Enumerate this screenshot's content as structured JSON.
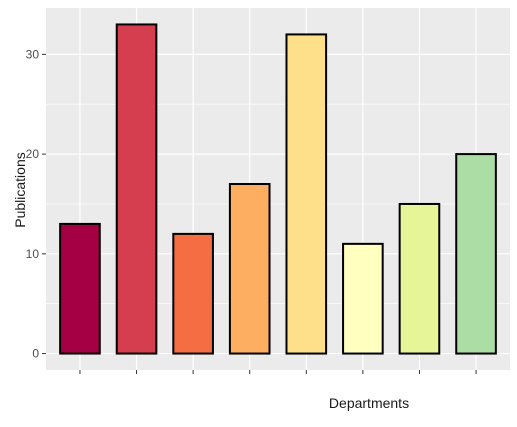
{
  "chart_data": {
    "type": "bar",
    "title": "",
    "xlabel": "Departments",
    "ylabel": "Publications",
    "categories": [
      "",
      "",
      "",
      "",
      "",
      "",
      "",
      ""
    ],
    "values": [
      13,
      33,
      12,
      17,
      32,
      11,
      15,
      20
    ],
    "colors": [
      "#a50043",
      "#d53e4f",
      "#f46d43",
      "#fdae61",
      "#fee08b",
      "#ffffbf",
      "#e6f598",
      "#abdda4"
    ],
    "bar_outline_color": "#000000",
    "panel_background": "#ebebeb",
    "grid_color": "#ffffff",
    "ylim": [
      -1.65,
      34.65
    ],
    "y_ticks": [
      0,
      10,
      20,
      30
    ],
    "y_tick_labels": [
      "0",
      "10",
      "20",
      "30"
    ],
    "grid": true,
    "legend": "none"
  }
}
